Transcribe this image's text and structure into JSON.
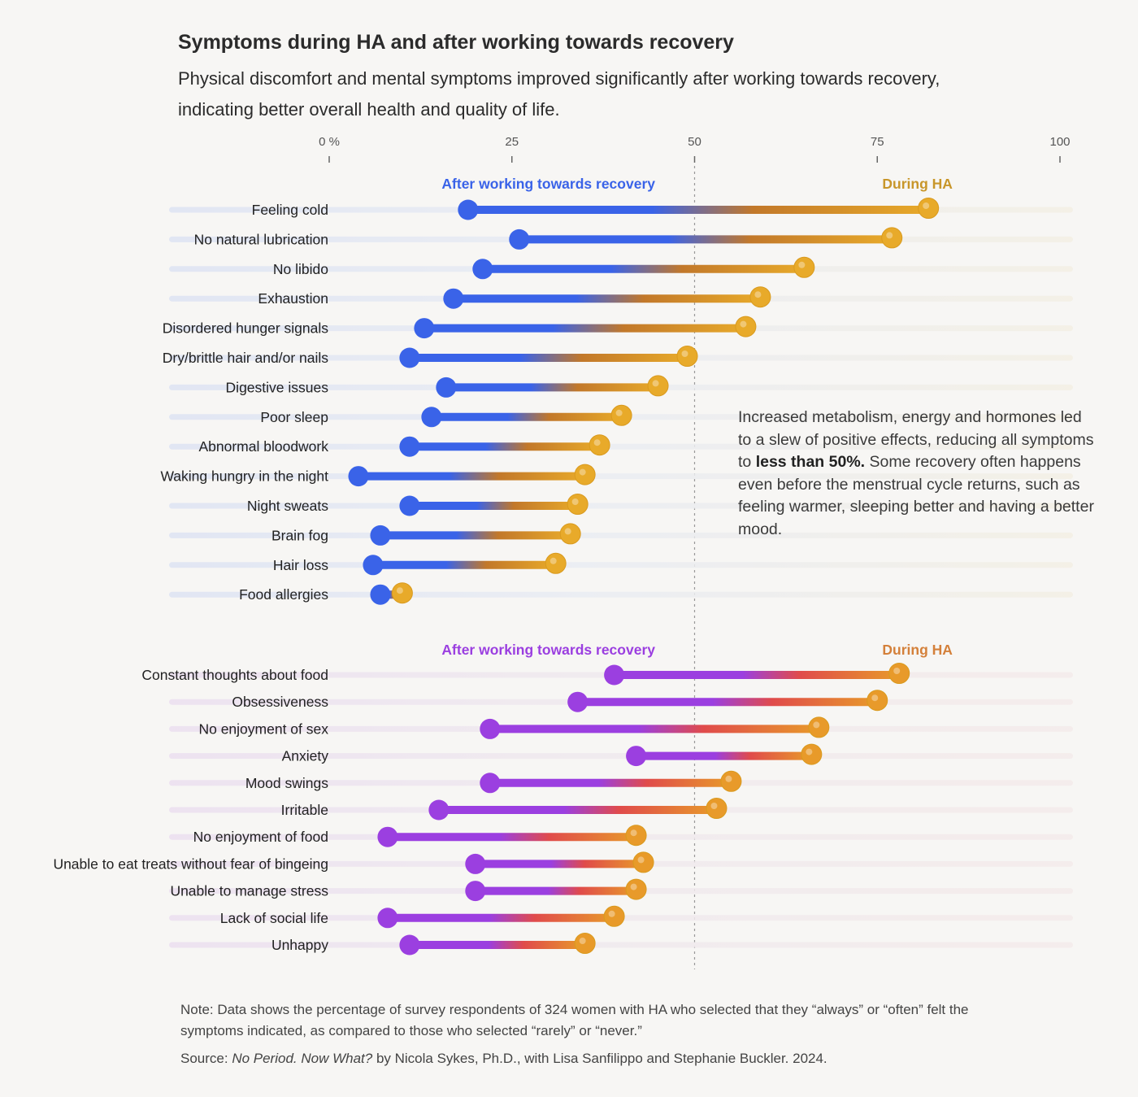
{
  "title": "Symptoms during HA and after working towards recovery",
  "subtitle": "Physical discomfort and mental symptoms improved significantly after working towards recovery, indicating better overall health and quality of life.",
  "annotation": {
    "before": "Increased metabolism, energy and hormones led to a slew of positive effects, reducing all symptoms to ",
    "bold": "less than 50%.",
    "after": " Some recovery often happens even before the menstrual cycle returns, such as feeling warmer, sleeping better and having a better mood."
  },
  "note": "Note: Data shows the percentage of survey respondents of 324 women with HA who selected that they “always” or “often” felt the symptoms indicated, as compared to those who selected “rarely” or “never.”",
  "source": {
    "prefix": "Source: ",
    "book": "No Period. Now What?",
    "suffix": " by Nicola Sykes, Ph.D., with Lisa Sanfilippo and Stephanie Buckler. 2024."
  },
  "colors": {
    "after_physical": "#3a63e8",
    "after_mental": "#9b3fe0",
    "during_physical": "#e8aa2a",
    "during_physical_label": "#c8962a",
    "during_mental": "#e89a2a",
    "during_mental_label": "#d4803a",
    "mid_physical": "#c2782a",
    "mid_mental": "#e04b4b",
    "track_physical": "#dde3f3",
    "track_mental": "#ebdff0"
  },
  "chart_data": {
    "type": "dumbbell",
    "xlim": [
      0,
      100
    ],
    "ticks": [
      {
        "value": 0,
        "label": "0 %"
      },
      {
        "value": 25,
        "label": "25"
      },
      {
        "value": 50,
        "label": "50"
      },
      {
        "value": 75,
        "label": "75"
      },
      {
        "value": 100,
        "label": "100"
      }
    ],
    "reference_line": 50,
    "groups": [
      {
        "key": "physical",
        "after_label": "After working towards recovery",
        "during_label": "During HA",
        "rows": [
          {
            "label": "Feeling cold",
            "after": 19,
            "during": 82
          },
          {
            "label": "No natural lubrication",
            "after": 26,
            "during": 77
          },
          {
            "label": "No libido",
            "after": 21,
            "during": 65
          },
          {
            "label": "Exhaustion",
            "after": 17,
            "during": 59
          },
          {
            "label": "Disordered hunger signals",
            "after": 13,
            "during": 57
          },
          {
            "label": "Dry/brittle hair and/or nails",
            "after": 11,
            "during": 49
          },
          {
            "label": "Digestive issues",
            "after": 16,
            "during": 45
          },
          {
            "label": "Poor sleep",
            "after": 14,
            "during": 40
          },
          {
            "label": "Abnormal bloodwork",
            "after": 11,
            "during": 37
          },
          {
            "label": "Waking hungry in the night",
            "after": 4,
            "during": 35
          },
          {
            "label": "Night sweats",
            "after": 11,
            "during": 34
          },
          {
            "label": "Brain fog",
            "after": 7,
            "during": 33
          },
          {
            "label": "Hair loss",
            "after": 6,
            "during": 31
          },
          {
            "label": "Food allergies",
            "after": 7,
            "during": 10
          }
        ]
      },
      {
        "key": "mental",
        "after_label": "After working towards recovery",
        "during_label": "During HA",
        "rows": [
          {
            "label": "Constant thoughts about food",
            "after": 39,
            "during": 78
          },
          {
            "label": "Obsessiveness",
            "after": 34,
            "during": 75
          },
          {
            "label": "No enjoyment of sex",
            "after": 22,
            "during": 67
          },
          {
            "label": "Anxiety",
            "after": 42,
            "during": 66
          },
          {
            "label": "Mood swings",
            "after": 22,
            "during": 55
          },
          {
            "label": "Irritable",
            "after": 15,
            "during": 53
          },
          {
            "label": "No enjoyment of food",
            "after": 8,
            "during": 42
          },
          {
            "label": "Unable to eat treats without fear of bingeing",
            "after": 20,
            "during": 43
          },
          {
            "label": "Unable to manage stress",
            "after": 20,
            "during": 42
          },
          {
            "label": "Lack of social life",
            "after": 8,
            "during": 39
          },
          {
            "label": "Unhappy",
            "after": 11,
            "during": 35
          }
        ]
      }
    ]
  }
}
